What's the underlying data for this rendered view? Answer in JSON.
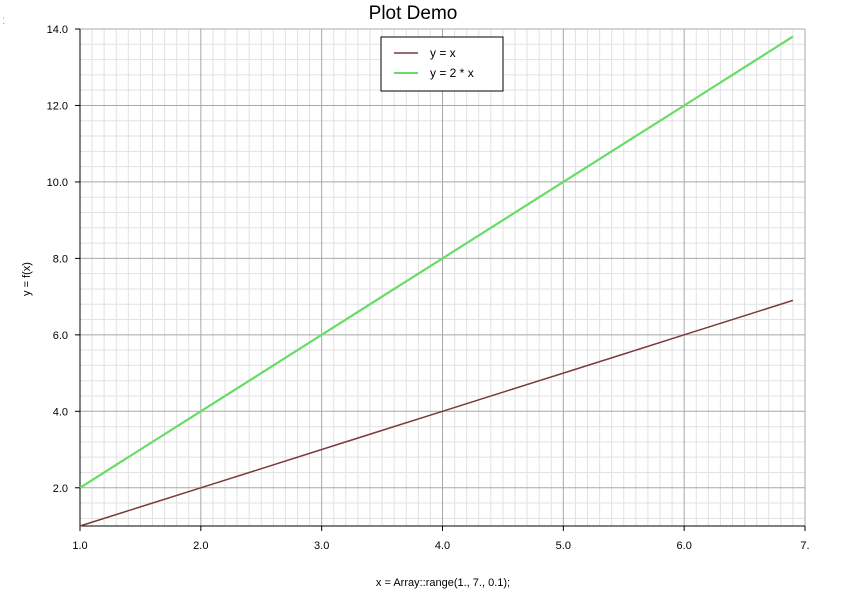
{
  "chart_data": {
    "type": "line",
    "title": "Plot Demo",
    "xlabel": "x = Array::range(1., 7., 0.1);",
    "ylabel": "y = f(x)",
    "xlim": [
      1.0,
      7.0
    ],
    "ylim": [
      1.0,
      14.0
    ],
    "x_ticks": [
      "1.0",
      "2.0",
      "3.0",
      "4.0",
      "5.0",
      "6.0",
      "7."
    ],
    "y_ticks": [
      "2.0",
      "4.0",
      "6.0",
      "8.0",
      "10.0",
      "12.0",
      "14.0"
    ],
    "grid": true,
    "legend_position": "top-center",
    "series": [
      {
        "name": "y = x",
        "color": "#7a3b3b",
        "x": [
          1.0,
          1.5,
          2.0,
          2.5,
          3.0,
          3.5,
          4.0,
          4.5,
          5.0,
          5.5,
          6.0,
          6.5,
          6.9
        ],
        "y": [
          1.0,
          1.5,
          2.0,
          2.5,
          3.0,
          3.5,
          4.0,
          4.5,
          5.0,
          5.5,
          6.0,
          6.5,
          6.9
        ]
      },
      {
        "name": "y = 2 * x",
        "color": "#66dd66",
        "x": [
          1.0,
          1.5,
          2.0,
          2.5,
          3.0,
          3.5,
          4.0,
          4.5,
          5.0,
          5.5,
          6.0,
          6.5,
          6.9
        ],
        "y": [
          2.0,
          3.0,
          4.0,
          5.0,
          6.0,
          7.0,
          8.0,
          9.0,
          10.0,
          11.0,
          12.0,
          13.0,
          13.8
        ]
      }
    ]
  }
}
